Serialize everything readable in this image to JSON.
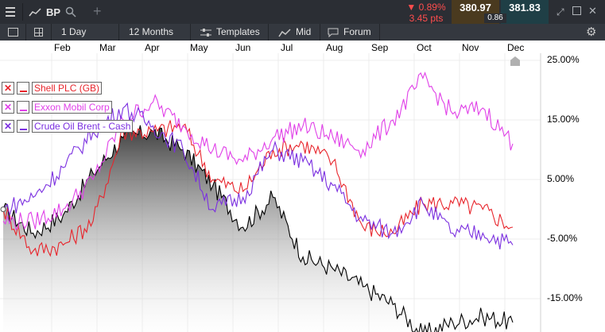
{
  "header": {
    "symbol": "BP",
    "change_pct": "▼ 0.89%",
    "change_pts": "3.45 pts",
    "bid": "380.97",
    "ask": "381.83",
    "spread": "0.86",
    "colors": {
      "bid_bg": "#4a3a1f",
      "ask_bg": "#1f3f46",
      "down": "#ff4d4d"
    }
  },
  "toolbar": {
    "interval": "1 Day",
    "range": "12 Months",
    "templates": "Templates",
    "price_type": "Mid",
    "forum": "Forum"
  },
  "legend": [
    {
      "label": "Shell PLC (GB)",
      "color": "#e8252c"
    },
    {
      "label": "Exxon Mobil Corp",
      "color": "#e040e8"
    },
    {
      "label": "Crude Oil Brent - Cash",
      "color": "#7b2fe0"
    }
  ],
  "chart_data": {
    "type": "line",
    "x_labels": [
      "Feb",
      "Mar",
      "Apr",
      "May",
      "Jun",
      "Jul",
      "Aug",
      "Sep",
      "Oct",
      "Nov",
      "Dec"
    ],
    "y_ticks": [
      "25.00%",
      "15.00%",
      "5.00%",
      "-5.00%",
      "-15.00%"
    ],
    "ylim": [
      -19,
      27
    ],
    "unit": "%",
    "series": [
      {
        "name": "BP",
        "color": "#000000",
        "fill": true,
        "values": [
          0,
          -4,
          -1,
          6,
          12,
          13,
          10,
          4,
          -3,
          2,
          -8,
          -10,
          -13,
          -16,
          -21,
          -19,
          -18,
          -19
        ]
      },
      {
        "name": "Shell PLC (GB)",
        "color": "#e8252c",
        "values": [
          0,
          -7,
          -6,
          -2,
          13,
          13,
          14,
          5,
          3,
          10,
          11,
          8,
          -3,
          -4,
          1,
          1,
          0,
          -3
        ]
      },
      {
        "name": "Exxon Mobil Corp",
        "color": "#e040e8",
        "values": [
          -2,
          -2,
          0,
          5,
          15,
          18,
          14,
          10,
          8,
          12,
          14,
          12,
          10,
          15,
          22,
          16,
          17,
          11
        ]
      },
      {
        "name": "Crude Oil Brent - Cash",
        "color": "#7b2fe0",
        "values": [
          0,
          2,
          7,
          13,
          17,
          14,
          10,
          0,
          2,
          10,
          8,
          4,
          -2,
          -4,
          1,
          -4,
          -4,
          -6
        ]
      }
    ]
  }
}
